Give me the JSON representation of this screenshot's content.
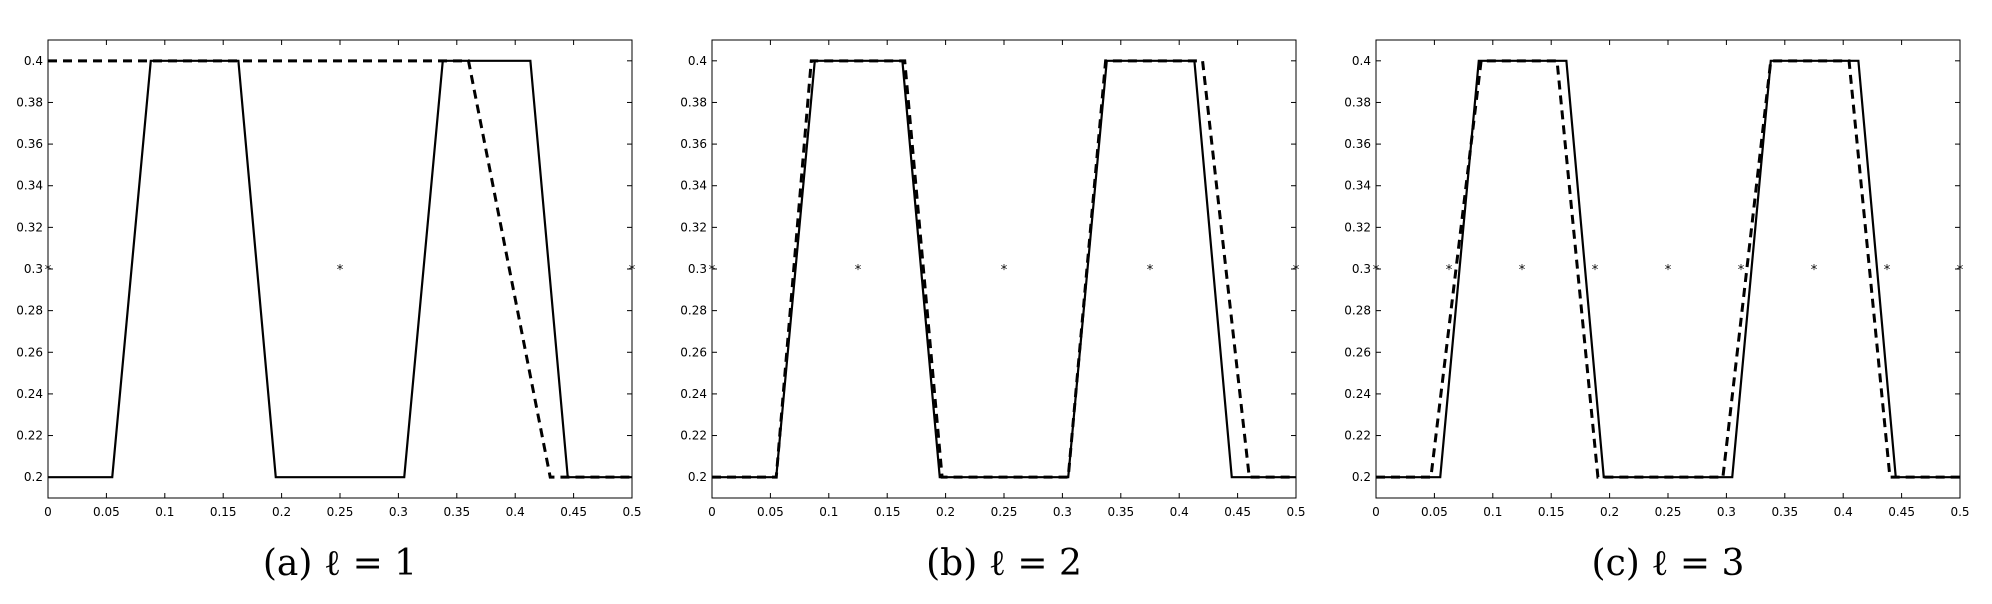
{
  "chart_data": [
    {
      "type": "line",
      "caption": "(a) ℓ = 1",
      "xlim": [
        0,
        0.5
      ],
      "ylim": [
        0.19,
        0.41
      ],
      "xticks": [
        "0",
        "0.05",
        "0.1",
        "0.15",
        "0.2",
        "0.25",
        "0.3",
        "0.35",
        "0.4",
        "0.45",
        "0.5"
      ],
      "yticks": [
        "0.2",
        "0.22",
        "0.24",
        "0.26",
        "0.28",
        "0.3",
        "0.32",
        "0.34",
        "0.36",
        "0.38",
        "0.4"
      ],
      "grid": false,
      "series": [
        {
          "style": "solid",
          "color": "#000000",
          "x": [
            0,
            0.055,
            0.088,
            0.163,
            0.195,
            0.305,
            0.338,
            0.413,
            0.445,
            0.5
          ],
          "y": [
            0.2,
            0.2,
            0.4,
            0.4,
            0.2,
            0.2,
            0.4,
            0.4,
            0.2,
            0.2
          ]
        },
        {
          "style": "dashed",
          "color": "#000000",
          "x": [
            0,
            0.36,
            0.43,
            0.5
          ],
          "y": [
            0.4,
            0.4,
            0.2,
            0.2
          ]
        },
        {
          "style": "markers",
          "marker": "*",
          "color": "#000000",
          "x": [
            0,
            0.25,
            0.5
          ],
          "y": [
            0.3,
            0.3,
            0.3
          ]
        }
      ]
    },
    {
      "type": "line",
      "caption": "(b) ℓ = 2",
      "xlim": [
        0,
        0.5
      ],
      "ylim": [
        0.19,
        0.41
      ],
      "xticks": [
        "0",
        "0.05",
        "0.1",
        "0.15",
        "0.2",
        "0.25",
        "0.3",
        "0.35",
        "0.4",
        "0.45",
        "0.5"
      ],
      "yticks": [
        "0.2",
        "0.22",
        "0.24",
        "0.26",
        "0.28",
        "0.3",
        "0.32",
        "0.34",
        "0.36",
        "0.38",
        "0.4"
      ],
      "grid": false,
      "series": [
        {
          "style": "solid",
          "color": "#000000",
          "x": [
            0,
            0.055,
            0.088,
            0.163,
            0.195,
            0.305,
            0.338,
            0.413,
            0.445,
            0.5
          ],
          "y": [
            0.2,
            0.2,
            0.4,
            0.4,
            0.2,
            0.2,
            0.4,
            0.4,
            0.2,
            0.2
          ]
        },
        {
          "style": "dashed",
          "color": "#000000",
          "x": [
            0,
            0.055,
            0.085,
            0.165,
            0.197,
            0.305,
            0.337,
            0.42,
            0.46,
            0.5
          ],
          "y": [
            0.2,
            0.2,
            0.4,
            0.4,
            0.2,
            0.2,
            0.4,
            0.4,
            0.2,
            0.2
          ]
        },
        {
          "style": "markers",
          "marker": "*",
          "color": "#000000",
          "x": [
            0,
            0.125,
            0.25,
            0.375,
            0.5
          ],
          "y": [
            0.3,
            0.3,
            0.3,
            0.3,
            0.3
          ]
        }
      ]
    },
    {
      "type": "line",
      "caption": "(c) ℓ = 3",
      "xlim": [
        0,
        0.5
      ],
      "ylim": [
        0.19,
        0.41
      ],
      "xticks": [
        "0",
        "0.05",
        "0.1",
        "0.15",
        "0.2",
        "0.25",
        "0.3",
        "0.35",
        "0.4",
        "0.45",
        "0.5"
      ],
      "yticks": [
        "0.2",
        "0.22",
        "0.24",
        "0.26",
        "0.28",
        "0.3",
        "0.32",
        "0.34",
        "0.36",
        "0.38",
        "0.4"
      ],
      "grid": false,
      "series": [
        {
          "style": "solid",
          "color": "#000000",
          "x": [
            0,
            0.055,
            0.088,
            0.163,
            0.195,
            0.305,
            0.338,
            0.413,
            0.445,
            0.5
          ],
          "y": [
            0.2,
            0.2,
            0.4,
            0.4,
            0.2,
            0.2,
            0.4,
            0.4,
            0.2,
            0.2
          ]
        },
        {
          "style": "dashed",
          "color": "#000000",
          "x": [
            0,
            0.047,
            0.09,
            0.155,
            0.19,
            0.297,
            0.338,
            0.405,
            0.44,
            0.5
          ],
          "y": [
            0.2,
            0.2,
            0.4,
            0.4,
            0.2,
            0.2,
            0.4,
            0.4,
            0.2,
            0.2
          ]
        },
        {
          "style": "markers",
          "marker": "*",
          "color": "#000000",
          "x": [
            0,
            0.0625,
            0.125,
            0.1875,
            0.25,
            0.3125,
            0.375,
            0.4375,
            0.5
          ],
          "y": [
            0.3,
            0.3,
            0.3,
            0.3,
            0.3,
            0.3,
            0.3,
            0.3,
            0.3
          ]
        }
      ]
    }
  ]
}
